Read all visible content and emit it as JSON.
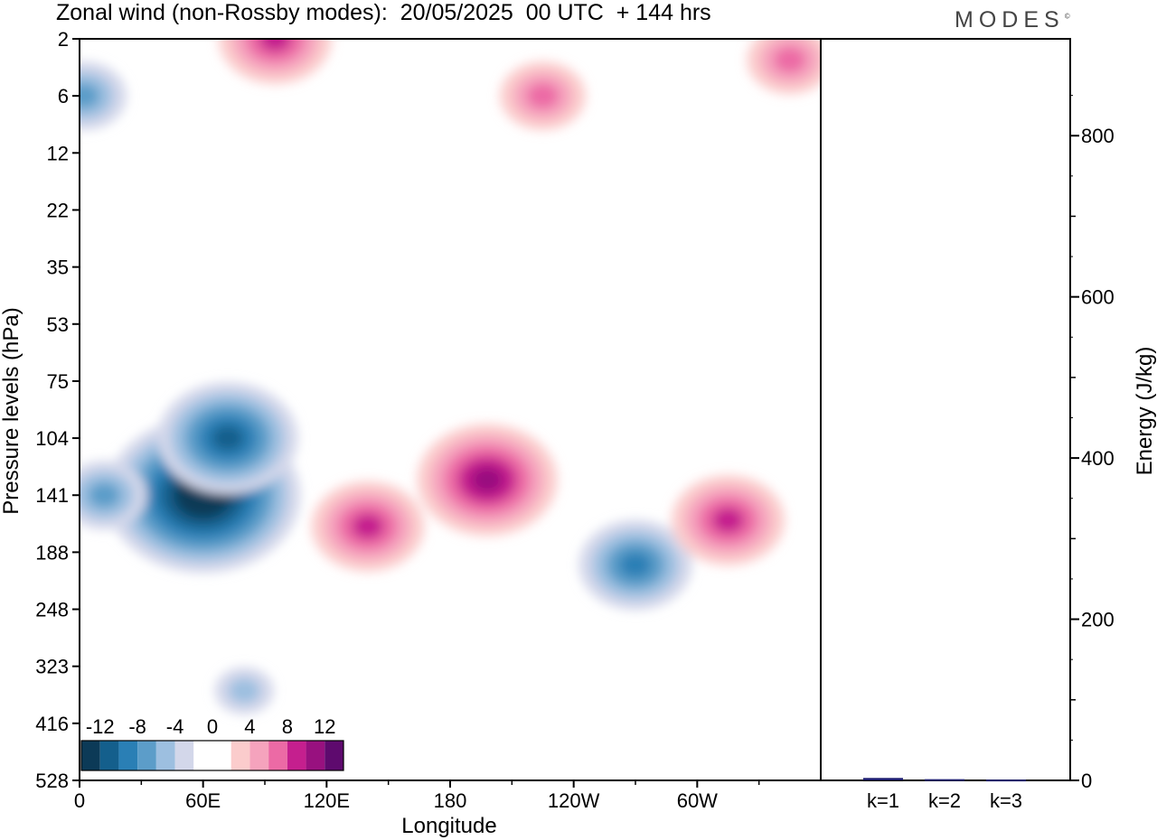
{
  "title": "Zonal wind (non-Rossby modes):  20/05/2025  00 UTC  + 144 hrs",
  "brand": "MODES",
  "brand_mark": "©",
  "chart_data": [
    {
      "type": "heatmap",
      "variable": "Zonal wind (non-Rossby modes)",
      "xlabel": "Longitude",
      "ylabel": "Pressure levels (hPa)",
      "x_ticks": [
        "0",
        "60E",
        "120E",
        "180",
        "120W",
        "60W"
      ],
      "x_tick_values": [
        0,
        60,
        120,
        180,
        240,
        300
      ],
      "xlim": [
        0,
        360
      ],
      "y_ticks": [
        "2",
        "6",
        "12",
        "22",
        "35",
        "53",
        "75",
        "104",
        "141",
        "188",
        "248",
        "323",
        "416",
        "528"
      ],
      "y_scale": "pressure levels, top=2 bottom=528",
      "colorbar": {
        "labels": [
          "-12",
          "-8",
          "-4",
          "0",
          "4",
          "8",
          "12"
        ],
        "levels": [
          -14,
          -12,
          -10,
          -8,
          -6,
          -4,
          -2,
          0,
          2,
          4,
          6,
          8,
          10,
          12,
          14
        ],
        "colors": [
          "#0c3a57",
          "#145f8c",
          "#2a7fb5",
          "#5c9dc9",
          "#9dbfe0",
          "#d3d7ea",
          "#ffffff",
          "#ffffff",
          "#fbcccc",
          "#f5a3bd",
          "#ec6aa5",
          "#c51f8e",
          "#98117f",
          "#5e0a6e"
        ],
        "placement": "bottom-left"
      },
      "features": [
        {
          "lon": 60,
          "level": 141,
          "value": -13,
          "note": "strongest easterly core"
        },
        {
          "lon": 72,
          "level": 104,
          "value": -10
        },
        {
          "lon": 12,
          "level": 141,
          "value": -6
        },
        {
          "lon": 80,
          "level": 360,
          "value": -4
        },
        {
          "lon": 2,
          "level": 6,
          "value": -5
        },
        {
          "lon": 270,
          "level": 200,
          "value": -7
        },
        {
          "lon": 140,
          "level": 165,
          "value": 7
        },
        {
          "lon": 198,
          "level": 130,
          "value": 9
        },
        {
          "lon": 315,
          "level": 160,
          "value": 8
        },
        {
          "lon": 225,
          "level": 6,
          "value": 5
        },
        {
          "lon": 95,
          "level": 2,
          "value": 7
        },
        {
          "lon": 345,
          "level": 3,
          "value": 6
        }
      ]
    },
    {
      "type": "bar",
      "categories": [
        "k=1",
        "k=2",
        "k=3"
      ],
      "values": [
        3,
        1.5,
        1
      ],
      "ylabel": "Energy (J/kg)",
      "ylim": [
        0,
        900
      ],
      "y_ticks": [
        0,
        200,
        400,
        600,
        800
      ],
      "bar_color": "#1a1a6e"
    }
  ]
}
